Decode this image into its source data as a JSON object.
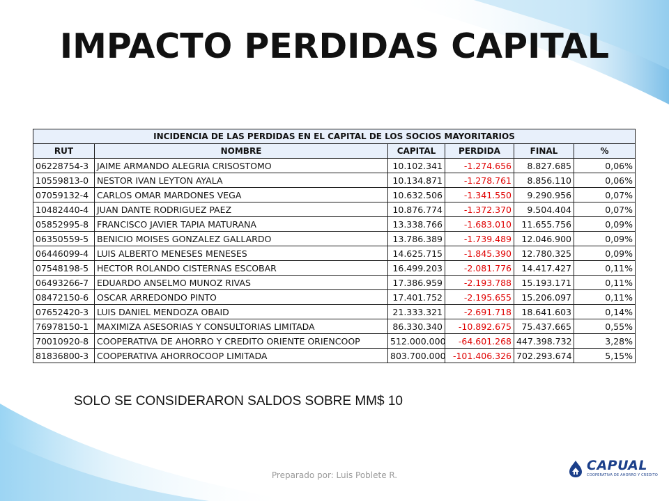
{
  "slide": {
    "title": "IMPACTO PERDIDAS CAPITAL",
    "note": "SOLO SE CONSIDERARON SALDOS SOBRE MM$ 10",
    "footer": "Preparado por: Luis Poblete R."
  },
  "table": {
    "title": "INCIDENCIA DE LAS PERDIDAS EN EL CAPITAL DE LOS SOCIOS MAYORITARIOS",
    "headers": [
      "RUT",
      "NOMBRE",
      "CAPITAL",
      "PERDIDA",
      "FINAL",
      "%"
    ],
    "rows": [
      [
        "06228754-3",
        "JAIME ARMANDO ALEGRIA CRISOSTOMO",
        "10.102.341",
        "-1.274.656",
        "8.827.685",
        "0,06%"
      ],
      [
        "10559813-0",
        "NESTOR IVAN LEYTON AYALA",
        "10.134.871",
        "-1.278.761",
        "8.856.110",
        "0,06%"
      ],
      [
        "07059132-4",
        "CARLOS OMAR MARDONES VEGA",
        "10.632.506",
        "-1.341.550",
        "9.290.956",
        "0,07%"
      ],
      [
        "10482440-4",
        "JUAN DANTE RODRIGUEZ PAEZ",
        "10.876.774",
        "-1.372.370",
        "9.504.404",
        "0,07%"
      ],
      [
        "05852995-8",
        "FRANCISCO JAVIER TAPIA MATURANA",
        "13.338.766",
        "-1.683.010",
        "11.655.756",
        "0,09%"
      ],
      [
        "06350559-5",
        "BENICIO MOISES GONZALEZ GALLARDO",
        "13.786.389",
        "-1.739.489",
        "12.046.900",
        "0,09%"
      ],
      [
        "06446099-4",
        "LUIS ALBERTO MENESES MENESES",
        "14.625.715",
        "-1.845.390",
        "12.780.325",
        "0,09%"
      ],
      [
        "07548198-5",
        "HECTOR ROLANDO CISTERNAS ESCOBAR",
        "16.499.203",
        "-2.081.776",
        "14.417.427",
        "0,11%"
      ],
      [
        "06493266-7",
        "EDUARDO ANSELMO MUNOZ RIVAS",
        "17.386.959",
        "-2.193.788",
        "15.193.171",
        "0,11%"
      ],
      [
        "08472150-6",
        "OSCAR ARREDONDO PINTO",
        "17.401.752",
        "-2.195.655",
        "15.206.097",
        "0,11%"
      ],
      [
        "07652420-3",
        "LUIS DANIEL MENDOZA OBAID",
        "21.333.321",
        "-2.691.718",
        "18.641.603",
        "0,14%"
      ],
      [
        "76978150-1",
        "MAXIMIZA ASESORIAS Y CONSULTORIAS LIMITADA",
        "86.330.340",
        "-10.892.675",
        "75.437.665",
        "0,55%"
      ],
      [
        "70010920-8",
        "COOPERATIVA DE AHORRO Y CREDITO ORIENTE  ORIENCOOP",
        "512.000.000",
        "-64.601.268",
        "447.398.732",
        "3,28%"
      ],
      [
        "81836800-3",
        "COOPERATIVA AHORROCOOP LIMITADA",
        "803.700.000",
        "-101.406.326",
        "702.293.674",
        "5,15%"
      ]
    ]
  },
  "logo": {
    "word": "CAPUAL",
    "tagline": "COOPERATIVA DE AHORRO Y CREDITO",
    "icon": "capual-logo-icon"
  },
  "colors": {
    "accent_wave": "#7fc3ea",
    "negative": "#e00000",
    "brand": "#1b3f8a"
  }
}
